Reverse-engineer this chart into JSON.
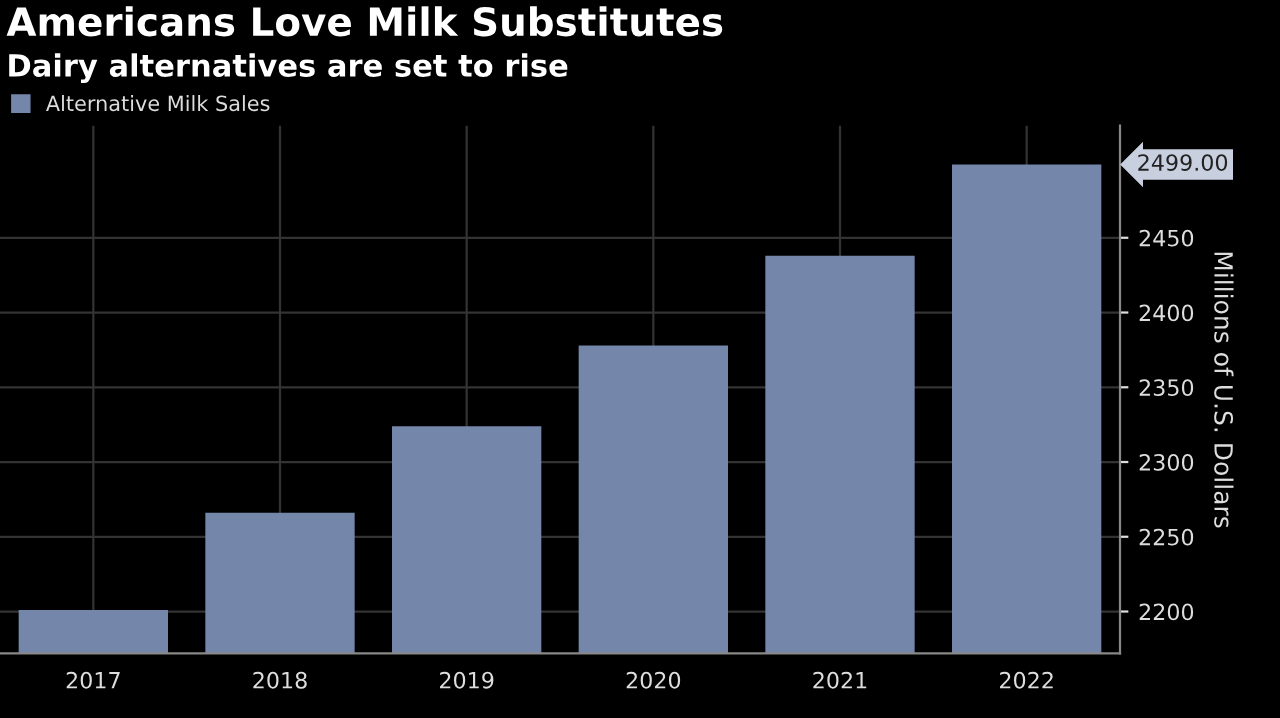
{
  "chart_data": {
    "type": "bar",
    "title": "Americans Love Milk Substitutes",
    "subtitle": "Dairy alternatives are set to rise",
    "categories": [
      "2017",
      "2018",
      "2019",
      "2020",
      "2021",
      "2022"
    ],
    "series": [
      {
        "name": "Alternative Milk Sales",
        "color": "#7486aa",
        "values": [
          2201,
          2266,
          2324,
          2378,
          2438,
          2499
        ]
      }
    ],
    "value_labels": [
      null,
      null,
      null,
      null,
      null,
      "2499.00"
    ],
    "ylabel": "Millions of U.S. Dollars",
    "ylim": [
      2172,
      2525
    ],
    "yticks": [
      2200,
      2250,
      2300,
      2350,
      2400,
      2450
    ],
    "grid": true,
    "legend": "top left"
  }
}
